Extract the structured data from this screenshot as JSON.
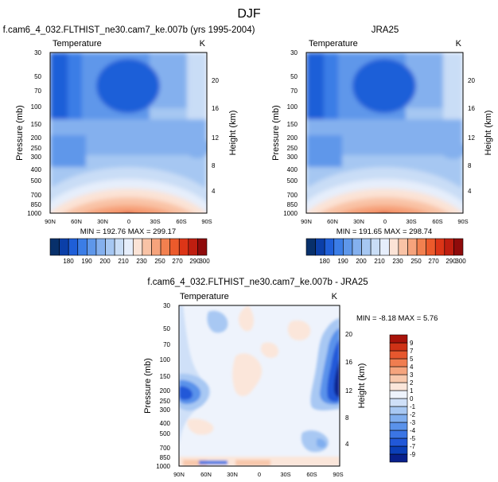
{
  "figure": {
    "title": "DJF"
  },
  "colormaps": {
    "abs": [
      "#08306b",
      "#0b3fa8",
      "#1f5fd8",
      "#3b7de6",
      "#5e97ea",
      "#84b0ee",
      "#a6c7f2",
      "#c9ddf6",
      "#e6eefb",
      "#fbe3d6",
      "#f9c3a6",
      "#f6a37c",
      "#f2804f",
      "#ec5a2b",
      "#dc3517",
      "#bf1e10",
      "#8f0b0b"
    ],
    "diff": [
      "#08208c",
      "#0b3fb8",
      "#2158d8",
      "#3b75e4",
      "#5a92ea",
      "#80aeef",
      "#a8c8f3",
      "#cfe0f8",
      "#eef3fc",
      "#fbe6da",
      "#f8c8ac",
      "#f5a47d",
      "#f07d50",
      "#e6572e",
      "#cf3216",
      "#a8130a"
    ]
  },
  "chart_data": [
    {
      "type": "heatmap",
      "panel": "model",
      "title": "f.cam6_4_032.FLTHIST_ne30.cam7_ke.007b (yrs 1995-2004)",
      "field_label": "Temperature",
      "units": "K",
      "ylabel": "Pressure (mb)",
      "y2label": "Height (km)",
      "xtick_labels": [
        "90N",
        "60N",
        "30N",
        "0",
        "30S",
        "60S",
        "90S"
      ],
      "ytick_labels": [
        "30",
        "50",
        "70",
        "100",
        "150",
        "200",
        "250",
        "300",
        "400",
        "500",
        "700",
        "850",
        "1000"
      ],
      "y2tick_labels": [
        "20",
        "16",
        "12",
        "8",
        "4"
      ],
      "stats": "MIN = 192.76  MAX = 299.17",
      "colorbar_labels": [
        "180",
        "190",
        "200",
        "210",
        "230",
        "250",
        "270",
        "290",
        "300"
      ]
    },
    {
      "type": "heatmap",
      "panel": "obs",
      "title": "JRA25",
      "field_label": "Temperature",
      "units": "K",
      "ylabel": "Pressure (mb)",
      "y2label": "Height (km)",
      "xtick_labels": [
        "90N",
        "60N",
        "30N",
        "0",
        "30S",
        "60S",
        "90S"
      ],
      "ytick_labels": [
        "30",
        "50",
        "70",
        "100",
        "150",
        "200",
        "250",
        "300",
        "400",
        "500",
        "700",
        "850",
        "1000"
      ],
      "y2tick_labels": [
        "20",
        "16",
        "12",
        "8",
        "4"
      ],
      "stats": "MIN = 191.65  MAX = 298.74",
      "colorbar_labels": [
        "180",
        "190",
        "200",
        "210",
        "230",
        "250",
        "270",
        "290",
        "300"
      ]
    },
    {
      "type": "heatmap",
      "panel": "diff",
      "title": "f.cam6_4_032.FLTHIST_ne30.cam7_ke.007b - JRA25",
      "field_label": "Temperature",
      "units": "K",
      "ylabel": "Pressure (mb)",
      "y2label": "Height (km)",
      "xtick_labels": [
        "90N",
        "60N",
        "30N",
        "0",
        "30S",
        "60S",
        "90S"
      ],
      "ytick_labels": [
        "30",
        "50",
        "70",
        "100",
        "150",
        "200",
        "250",
        "300",
        "400",
        "500",
        "700",
        "850",
        "1000"
      ],
      "y2tick_labels": [
        "20",
        "16",
        "12",
        "8",
        "4"
      ],
      "stats": "MIN = -8.18  MAX =  5.76",
      "colorbar_labels": [
        "9",
        "7",
        "5",
        "4",
        "3",
        "2",
        "1",
        "0",
        "-1",
        "-2",
        "-3",
        "-4",
        "-5",
        "-7",
        "-9"
      ]
    }
  ]
}
